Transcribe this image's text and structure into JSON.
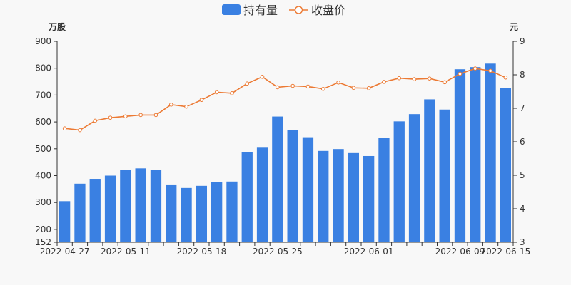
{
  "chart_data": {
    "type": "bar+line",
    "legend": {
      "position": "top-center",
      "items": [
        {
          "label": "持有量",
          "marker": "bar",
          "color": "#3a80e2"
        },
        {
          "label": "收盘价",
          "marker": "line-circle",
          "color": "#ec7a34"
        }
      ]
    },
    "y_left": {
      "unit": "万股",
      "min": 152,
      "max": 900,
      "ticks": [
        "152",
        "200",
        "300",
        "400",
        "500",
        "600",
        "700",
        "800",
        "900"
      ]
    },
    "y_right": {
      "unit": "元",
      "min": 3,
      "max": 9,
      "ticks": [
        "3",
        "4",
        "5",
        "6",
        "7",
        "8",
        "9"
      ]
    },
    "x_labels": [
      "2022-04-27",
      "2022-05-11",
      "2022-05-18",
      "2022-05-25",
      "2022-06-01",
      "2022-06-09",
      "2022-06-15"
    ],
    "x_label_indices": [
      0,
      4,
      9,
      14,
      20,
      26,
      29
    ],
    "series": [
      {
        "name": "持有量",
        "type": "bar",
        "color": "#3a80e2",
        "values": [
          305,
          370,
          388,
          400,
          422,
          427,
          421,
          367,
          354,
          362,
          377,
          378,
          488,
          504,
          620,
          569,
          543,
          492,
          499,
          484,
          473,
          540,
          602,
          629,
          684,
          646,
          796,
          804,
          817,
          727
        ]
      },
      {
        "name": "收盘价",
        "type": "line",
        "color": "#ec7a34",
        "values": [
          6.4,
          6.35,
          6.63,
          6.72,
          6.76,
          6.8,
          6.8,
          7.11,
          7.05,
          7.25,
          7.48,
          7.45,
          7.74,
          7.94,
          7.63,
          7.67,
          7.65,
          7.58,
          7.77,
          7.61,
          7.6,
          7.79,
          7.9,
          7.87,
          7.89,
          7.78,
          8.03,
          8.19,
          8.12,
          7.92
        ]
      }
    ]
  }
}
